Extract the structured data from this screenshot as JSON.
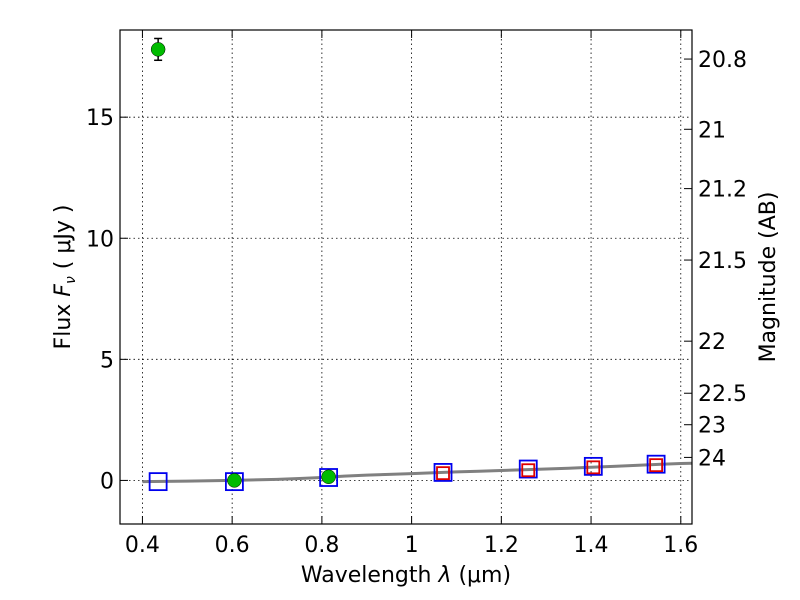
{
  "chart_data": {
    "type": "scatter",
    "xlabel_text": "Wavelength",
    "xlabel_symbol": "λ",
    "xlabel_unit": "(μm)",
    "ylabel_text": "Flux",
    "ylabel_symbol": "F",
    "ylabel_sub": "ν",
    "ylabel_unit": "( μJy )",
    "y2label": "Magnitude (AB)",
    "xlim": [
      0.35,
      1.625
    ],
    "ylim": [
      -1.8,
      18.6
    ],
    "grid": true,
    "x_ticks": [
      0.4,
      0.6,
      0.8,
      1.0,
      1.2,
      1.4,
      1.6
    ],
    "x_tick_labels": [
      "0.4",
      "0.6",
      "0.8",
      "1",
      "1.2",
      "1.4",
      "1.6"
    ],
    "y_ticks": [
      0,
      5,
      10,
      15
    ],
    "y_tick_labels": [
      "0",
      "5",
      "10",
      "15"
    ],
    "y2_ticks": [
      {
        "label": "20.8",
        "flux": 17.4
      },
      {
        "label": "21",
        "flux": 14.5
      },
      {
        "label": "21.2",
        "flux": 12.05
      },
      {
        "label": "21.5",
        "flux": 9.1
      },
      {
        "label": "22",
        "flux": 5.75
      },
      {
        "label": "22.5",
        "flux": 3.6
      },
      {
        "label": "23",
        "flux": 2.3
      },
      {
        "label": "24",
        "flux": 0.95
      }
    ],
    "series": [
      {
        "marker": "circle",
        "color": "#00bb00",
        "points": [
          {
            "x": 0.435,
            "y": 17.8,
            "err": 0.45
          },
          {
            "x": 0.605,
            "y": 0.0,
            "err": 0.05
          },
          {
            "x": 0.815,
            "y": 0.15,
            "err": 0.05
          }
        ]
      },
      {
        "marker": "open-square",
        "color": "#0000ee",
        "points": [
          {
            "x": 0.435,
            "y": -0.05
          },
          {
            "x": 0.605,
            "y": -0.05
          },
          {
            "x": 0.815,
            "y": 0.12
          },
          {
            "x": 1.07,
            "y": 0.33
          },
          {
            "x": 1.26,
            "y": 0.47
          },
          {
            "x": 1.405,
            "y": 0.58
          },
          {
            "x": 1.545,
            "y": 0.67
          }
        ]
      },
      {
        "marker": "open-square",
        "color": "#dd0000",
        "points": [
          {
            "x": 1.07,
            "y": 0.3
          },
          {
            "x": 1.26,
            "y": 0.42
          },
          {
            "x": 1.405,
            "y": 0.54
          },
          {
            "x": 1.545,
            "y": 0.63
          }
        ]
      },
      {
        "marker": "line",
        "color": "#808080",
        "points": [
          {
            "x": 0.4,
            "y": -0.05
          },
          {
            "x": 0.5,
            "y": -0.03
          },
          {
            "x": 0.6,
            "y": 0.0
          },
          {
            "x": 0.7,
            "y": 0.04
          },
          {
            "x": 0.75,
            "y": 0.08
          },
          {
            "x": 0.8,
            "y": 0.12
          },
          {
            "x": 0.85,
            "y": 0.18
          },
          {
            "x": 0.9,
            "y": 0.22
          },
          {
            "x": 0.95,
            "y": 0.25
          },
          {
            "x": 1.0,
            "y": 0.28
          },
          {
            "x": 1.05,
            "y": 0.32
          },
          {
            "x": 1.1,
            "y": 0.35
          },
          {
            "x": 1.15,
            "y": 0.38
          },
          {
            "x": 1.2,
            "y": 0.41
          },
          {
            "x": 1.25,
            "y": 0.44
          },
          {
            "x": 1.3,
            "y": 0.47
          },
          {
            "x": 1.35,
            "y": 0.5
          },
          {
            "x": 1.4,
            "y": 0.54
          },
          {
            "x": 1.45,
            "y": 0.58
          },
          {
            "x": 1.5,
            "y": 0.62
          },
          {
            "x": 1.55,
            "y": 0.66
          },
          {
            "x": 1.6,
            "y": 0.7
          },
          {
            "x": 1.625,
            "y": 0.71
          }
        ]
      }
    ]
  }
}
